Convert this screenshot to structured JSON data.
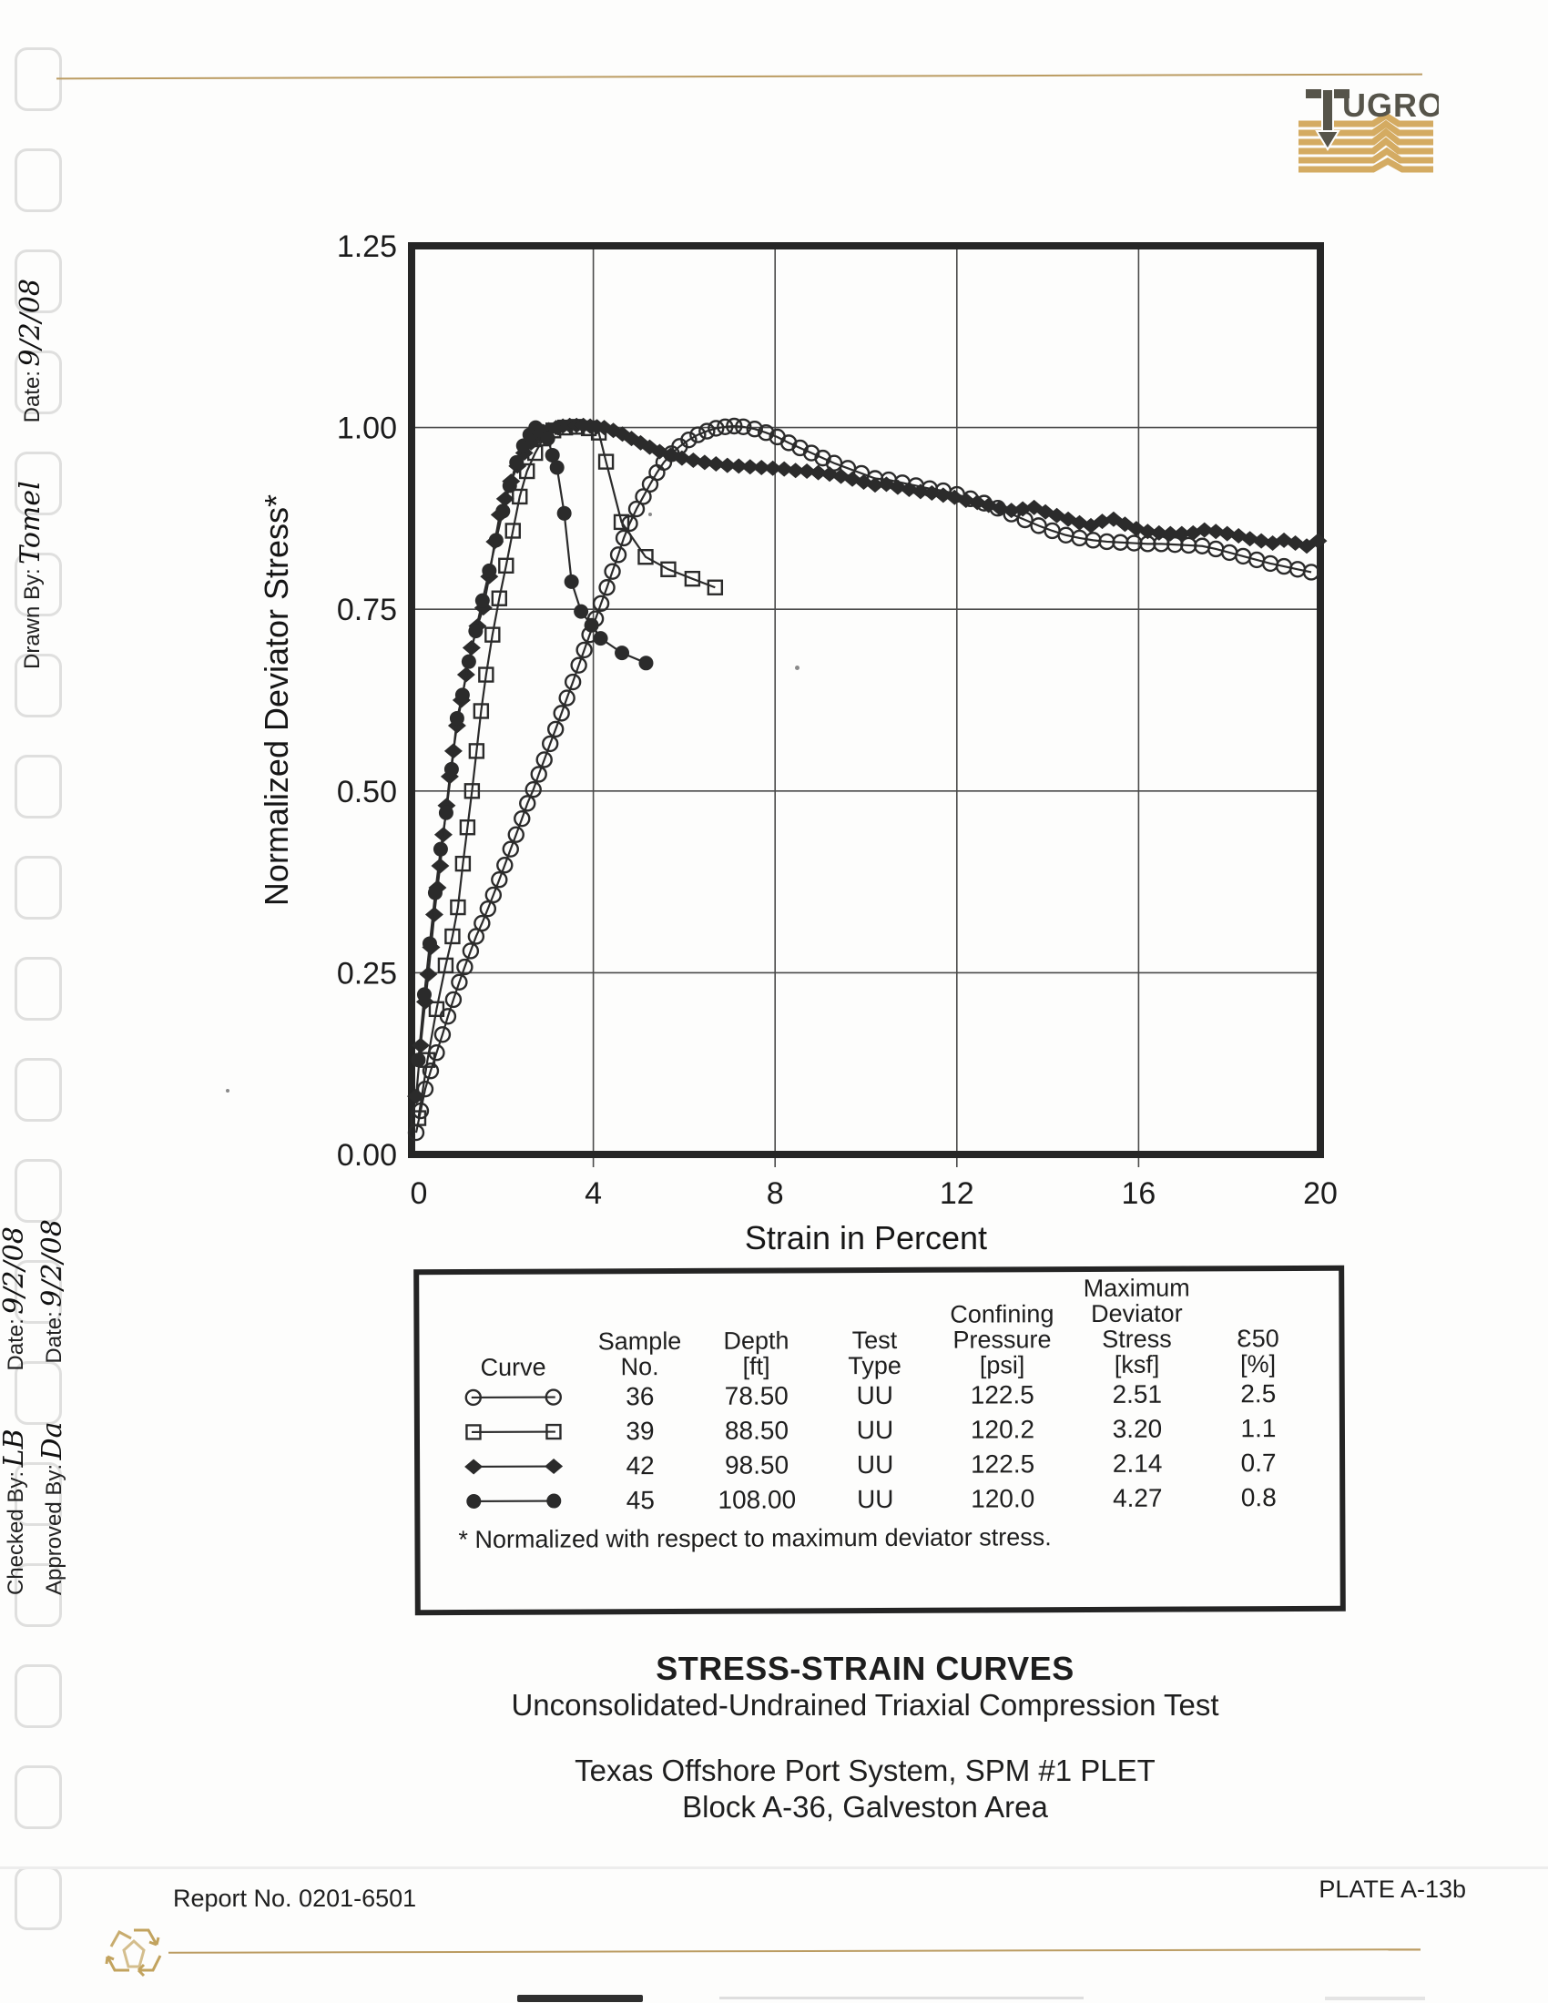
{
  "logo": {
    "letters": "UGRO",
    "brand": "FUGRO"
  },
  "margin_notes": {
    "drawn_by_label": "Drawn By:",
    "drawn_by_value": "Tomel",
    "drawn_date_label": "Date:",
    "drawn_date_value": "9/2/08",
    "checked_by_label": "Checked By:",
    "checked_by_value": "LB",
    "checked_date_label": "Date:",
    "checked_date_value": "9/2/08",
    "approved_by_label": "Approved By:",
    "approved_by_value": "Da",
    "approved_date_label": "Date:",
    "approved_date_value": "9/2/08"
  },
  "legend": {
    "headers": [
      "Curve",
      "Sample\nNo.",
      "Depth\n[ft]",
      "Test\nType",
      "Confining\nPressure\n[psi]",
      "Maximum\nDeviator\nStress\n[ksf]",
      "Ɛ50\n[%]"
    ],
    "rows": [
      {
        "marker": "open-circle",
        "sample": "36",
        "depth": "78.50",
        "test": "UU",
        "pressure": "122.5",
        "stress": "2.51",
        "e50": "2.5"
      },
      {
        "marker": "open-square",
        "sample": "39",
        "depth": "88.50",
        "test": "UU",
        "pressure": "120.2",
        "stress": "3.20",
        "e50": "1.1"
      },
      {
        "marker": "filled-diamond",
        "sample": "42",
        "depth": "98.50",
        "test": "UU",
        "pressure": "122.5",
        "stress": "2.14",
        "e50": "0.7"
      },
      {
        "marker": "filled-circle",
        "sample": "45",
        "depth": "108.00",
        "test": "UU",
        "pressure": "120.0",
        "stress": "4.27",
        "e50": "0.8"
      }
    ],
    "footnote": "* Normalized with respect to maximum deviator stress."
  },
  "titles": {
    "line1": "STRESS-STRAIN CURVES",
    "line2": "Unconsolidated-Undrained Triaxial Compression Test",
    "line3": "Texas Offshore Port System, SPM #1 PLET",
    "line4": "Block A-36, Galveston Area"
  },
  "footer": {
    "report": "Report No. 0201-6501",
    "plate": "PLATE A-13b"
  },
  "chart_data": {
    "type": "line",
    "xlabel": "Strain in Percent",
    "ylabel": "Normalized Deviator Stress*",
    "xlim": [
      0,
      20
    ],
    "ylim": [
      0,
      1.25
    ],
    "xticks": [
      0,
      4,
      8,
      12,
      16,
      20
    ],
    "xtick_labels": [
      "0",
      "4",
      "8",
      "12",
      "16",
      "20"
    ],
    "yticks": [
      0,
      0.25,
      0.5,
      0.75,
      1.0,
      1.25
    ],
    "ytick_labels": [
      "0.00",
      "0.25",
      "0.50",
      "0.75",
      "1.00",
      "1.25"
    ],
    "grid": true,
    "legend_position": "table-below",
    "series": [
      {
        "name": "Sample 36",
        "marker": "open-circle",
        "points": [
          [
            0.1,
            0.03
          ],
          [
            0.2,
            0.06
          ],
          [
            0.3,
            0.09
          ],
          [
            0.42,
            0.115
          ],
          [
            0.55,
            0.14
          ],
          [
            0.68,
            0.165
          ],
          [
            0.8,
            0.19
          ],
          [
            0.92,
            0.213
          ],
          [
            1.05,
            0.237
          ],
          [
            1.17,
            0.258
          ],
          [
            1.3,
            0.28
          ],
          [
            1.42,
            0.3
          ],
          [
            1.55,
            0.318
          ],
          [
            1.68,
            0.338
          ],
          [
            1.8,
            0.357
          ],
          [
            1.93,
            0.378
          ],
          [
            2.05,
            0.398
          ],
          [
            2.18,
            0.42
          ],
          [
            2.3,
            0.44
          ],
          [
            2.43,
            0.462
          ],
          [
            2.55,
            0.483
          ],
          [
            2.68,
            0.502
          ],
          [
            2.8,
            0.523
          ],
          [
            2.92,
            0.543
          ],
          [
            3.05,
            0.565
          ],
          [
            3.17,
            0.585
          ],
          [
            3.3,
            0.607
          ],
          [
            3.42,
            0.628
          ],
          [
            3.55,
            0.65
          ],
          [
            3.68,
            0.673
          ],
          [
            3.8,
            0.694
          ],
          [
            3.92,
            0.715
          ],
          [
            4.05,
            0.737
          ],
          [
            4.17,
            0.758
          ],
          [
            4.3,
            0.78
          ],
          [
            4.42,
            0.802
          ],
          [
            4.55,
            0.825
          ],
          [
            4.67,
            0.848
          ],
          [
            4.8,
            0.868
          ],
          [
            4.95,
            0.888
          ],
          [
            5.1,
            0.905
          ],
          [
            5.25,
            0.922
          ],
          [
            5.4,
            0.938
          ],
          [
            5.55,
            0.952
          ],
          [
            5.72,
            0.964
          ],
          [
            5.9,
            0.974
          ],
          [
            6.1,
            0.983
          ],
          [
            6.3,
            0.99
          ],
          [
            6.5,
            0.995
          ],
          [
            6.7,
            0.999
          ],
          [
            6.9,
            1.001
          ],
          [
            7.1,
            1.002
          ],
          [
            7.3,
            1.001
          ],
          [
            7.55,
            0.998
          ],
          [
            7.8,
            0.993
          ],
          [
            8.05,
            0.987
          ],
          [
            8.3,
            0.979
          ],
          [
            8.55,
            0.972
          ],
          [
            8.8,
            0.965
          ],
          [
            9.05,
            0.958
          ],
          [
            9.3,
            0.951
          ],
          [
            9.6,
            0.944
          ],
          [
            9.9,
            0.937
          ],
          [
            10.2,
            0.93
          ],
          [
            10.5,
            0.928
          ],
          [
            10.8,
            0.924
          ],
          [
            11.1,
            0.92
          ],
          [
            11.4,
            0.916
          ],
          [
            11.7,
            0.913
          ],
          [
            12,
            0.908
          ],
          [
            12.3,
            0.902
          ],
          [
            12.6,
            0.896
          ],
          [
            12.9,
            0.889
          ],
          [
            13.2,
            0.881
          ],
          [
            13.5,
            0.873
          ],
          [
            13.8,
            0.865
          ],
          [
            14.1,
            0.858
          ],
          [
            14.4,
            0.852
          ],
          [
            14.7,
            0.848
          ],
          [
            15,
            0.845
          ],
          [
            15.3,
            0.843
          ],
          [
            15.6,
            0.842
          ],
          [
            15.9,
            0.841
          ],
          [
            16.2,
            0.84
          ],
          [
            16.5,
            0.84
          ],
          [
            16.8,
            0.839
          ],
          [
            17.1,
            0.838
          ],
          [
            17.4,
            0.837
          ],
          [
            17.7,
            0.833
          ],
          [
            18,
            0.828
          ],
          [
            18.3,
            0.823
          ],
          [
            18.6,
            0.818
          ],
          [
            18.9,
            0.813
          ],
          [
            19.2,
            0.809
          ],
          [
            19.5,
            0.805
          ],
          [
            19.8,
            0.801
          ]
        ]
      },
      {
        "name": "Sample 39",
        "marker": "open-square",
        "points": [
          [
            0.15,
            0.05
          ],
          [
            0.35,
            0.13
          ],
          [
            0.55,
            0.2
          ],
          [
            0.75,
            0.26
          ],
          [
            0.9,
            0.3
          ],
          [
            1.02,
            0.34
          ],
          [
            1.13,
            0.4
          ],
          [
            1.23,
            0.45
          ],
          [
            1.33,
            0.5
          ],
          [
            1.43,
            0.555
          ],
          [
            1.53,
            0.61
          ],
          [
            1.64,
            0.66
          ],
          [
            1.78,
            0.715
          ],
          [
            1.93,
            0.765
          ],
          [
            2.08,
            0.81
          ],
          [
            2.23,
            0.858
          ],
          [
            2.38,
            0.905
          ],
          [
            2.54,
            0.94
          ],
          [
            2.72,
            0.965
          ],
          [
            2.9,
            0.985
          ],
          [
            3.12,
            0.996
          ],
          [
            3.38,
            1.0
          ],
          [
            3.64,
            1.001
          ],
          [
            3.9,
            0.999
          ],
          [
            4.12,
            0.993
          ],
          [
            4.28,
            0.953
          ],
          [
            4.62,
            0.87
          ],
          [
            5.15,
            0.822
          ],
          [
            5.65,
            0.805
          ],
          [
            6.18,
            0.792
          ],
          [
            6.68,
            0.78
          ]
        ]
      },
      {
        "name": "Sample 42",
        "marker": "filled-diamond",
        "points": [
          [
            0.1,
            0.08
          ],
          [
            0.2,
            0.15
          ],
          [
            0.3,
            0.21
          ],
          [
            0.37,
            0.248
          ],
          [
            0.43,
            0.285
          ],
          [
            0.5,
            0.33
          ],
          [
            0.57,
            0.367
          ],
          [
            0.63,
            0.397
          ],
          [
            0.7,
            0.44
          ],
          [
            0.77,
            0.48
          ],
          [
            0.84,
            0.52
          ],
          [
            0.92,
            0.555
          ],
          [
            1,
            0.59
          ],
          [
            1.1,
            0.625
          ],
          [
            1.2,
            0.66
          ],
          [
            1.32,
            0.697
          ],
          [
            1.45,
            0.727
          ],
          [
            1.58,
            0.752
          ],
          [
            1.71,
            0.795
          ],
          [
            1.83,
            0.843
          ],
          [
            1.94,
            0.88
          ],
          [
            2.06,
            0.902
          ],
          [
            2.19,
            0.926
          ],
          [
            2.33,
            0.947
          ],
          [
            2.48,
            0.965
          ],
          [
            2.63,
            0.979
          ],
          [
            2.82,
            0.99
          ],
          [
            3.02,
            0.997
          ],
          [
            3.18,
            1.0
          ],
          [
            3.33,
            1.002
          ],
          [
            3.48,
            1.003
          ],
          [
            3.63,
            1.003
          ],
          [
            3.78,
            1.003
          ],
          [
            3.93,
            1.002
          ],
          [
            4.08,
            1.001
          ],
          [
            4.24,
            1.0
          ],
          [
            4.44,
            0.996
          ],
          [
            4.64,
            0.991
          ],
          [
            4.84,
            0.985
          ],
          [
            5.04,
            0.979
          ],
          [
            5.24,
            0.973
          ],
          [
            5.46,
            0.967
          ],
          [
            5.7,
            0.962
          ],
          [
            5.95,
            0.958
          ],
          [
            6.2,
            0.955
          ],
          [
            6.45,
            0.952
          ],
          [
            6.7,
            0.95
          ],
          [
            6.95,
            0.948
          ],
          [
            7.2,
            0.947
          ],
          [
            7.45,
            0.946
          ],
          [
            7.7,
            0.945
          ],
          [
            7.95,
            0.944
          ],
          [
            8.2,
            0.943
          ],
          [
            8.45,
            0.941
          ],
          [
            8.7,
            0.94
          ],
          [
            8.95,
            0.938
          ],
          [
            9.2,
            0.936
          ],
          [
            9.45,
            0.933
          ],
          [
            9.7,
            0.929
          ],
          [
            9.95,
            0.925
          ],
          [
            10.2,
            0.921
          ],
          [
            10.45,
            0.922
          ],
          [
            10.7,
            0.918
          ],
          [
            10.95,
            0.915
          ],
          [
            11.2,
            0.912
          ],
          [
            11.45,
            0.91
          ],
          [
            11.7,
            0.907
          ],
          [
            11.95,
            0.904
          ],
          [
            12.2,
            0.9
          ],
          [
            12.45,
            0.897
          ],
          [
            12.7,
            0.893
          ],
          [
            12.95,
            0.889
          ],
          [
            13.2,
            0.886
          ],
          [
            13.45,
            0.888
          ],
          [
            13.7,
            0.89
          ],
          [
            13.95,
            0.884
          ],
          [
            14.2,
            0.879
          ],
          [
            14.45,
            0.874
          ],
          [
            14.7,
            0.869
          ],
          [
            14.95,
            0.865
          ],
          [
            15.2,
            0.871
          ],
          [
            15.45,
            0.874
          ],
          [
            15.7,
            0.867
          ],
          [
            15.95,
            0.861
          ],
          [
            16.2,
            0.857
          ],
          [
            16.45,
            0.855
          ],
          [
            16.7,
            0.854
          ],
          [
            16.95,
            0.854
          ],
          [
            17.2,
            0.855
          ],
          [
            17.45,
            0.859
          ],
          [
            17.7,
            0.857
          ],
          [
            17.95,
            0.854
          ],
          [
            18.2,
            0.851
          ],
          [
            18.45,
            0.847
          ],
          [
            18.7,
            0.844
          ],
          [
            18.95,
            0.841
          ],
          [
            19.2,
            0.845
          ],
          [
            19.45,
            0.841
          ],
          [
            19.7,
            0.837
          ],
          [
            19.95,
            0.844
          ]
        ]
      },
      {
        "name": "Sample 45",
        "marker": "filled-circle",
        "points": [
          [
            0.15,
            0.13
          ],
          [
            0.28,
            0.22
          ],
          [
            0.4,
            0.29
          ],
          [
            0.52,
            0.36
          ],
          [
            0.64,
            0.42
          ],
          [
            0.76,
            0.47
          ],
          [
            0.88,
            0.53
          ],
          [
            1,
            0.6
          ],
          [
            1.12,
            0.632
          ],
          [
            1.26,
            0.678
          ],
          [
            1.41,
            0.72
          ],
          [
            1.56,
            0.762
          ],
          [
            1.71,
            0.803
          ],
          [
            1.86,
            0.845
          ],
          [
            2.01,
            0.885
          ],
          [
            2.16,
            0.92
          ],
          [
            2.31,
            0.952
          ],
          [
            2.46,
            0.975
          ],
          [
            2.6,
            0.99
          ],
          [
            2.73,
            1.0
          ],
          [
            2.86,
            0.995
          ],
          [
            3,
            0.985
          ],
          [
            3.1,
            0.962
          ],
          [
            3.2,
            0.945
          ],
          [
            3.36,
            0.882
          ],
          [
            3.52,
            0.788
          ],
          [
            3.73,
            0.747
          ],
          [
            3.96,
            0.728
          ],
          [
            4.16,
            0.71
          ],
          [
            4.63,
            0.69
          ],
          [
            5.16,
            0.676
          ]
        ]
      }
    ]
  }
}
